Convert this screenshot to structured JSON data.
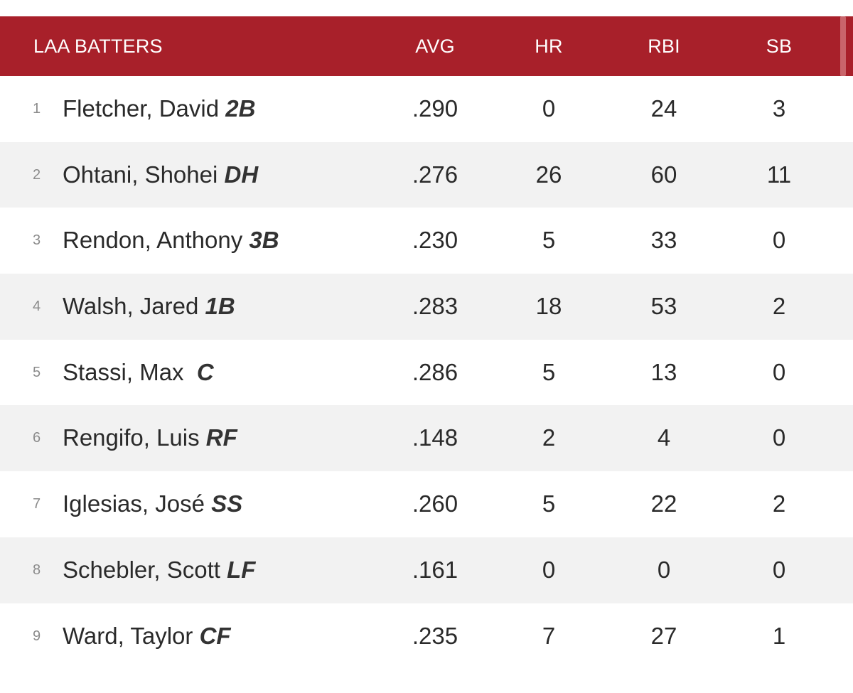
{
  "header": {
    "title": "LAA BATTERS",
    "columns": [
      "AVG",
      "HR",
      "RBI",
      "SB"
    ]
  },
  "rows": [
    {
      "num": "1",
      "name": "Fletcher, David",
      "pos": "2B",
      "avg": ".290",
      "hr": "0",
      "rbi": "24",
      "sb": "3"
    },
    {
      "num": "2",
      "name": "Ohtani, Shohei",
      "pos": "DH",
      "avg": ".276",
      "hr": "26",
      "rbi": "60",
      "sb": "11"
    },
    {
      "num": "3",
      "name": "Rendon, Anthony",
      "pos": "3B",
      "avg": ".230",
      "hr": "5",
      "rbi": "33",
      "sb": "0"
    },
    {
      "num": "4",
      "name": "Walsh, Jared",
      "pos": "1B",
      "avg": ".283",
      "hr": "18",
      "rbi": "53",
      "sb": "2"
    },
    {
      "num": "5",
      "name": "Stassi, Max",
      "pos": "C",
      "avg": ".286",
      "hr": "5",
      "rbi": "13",
      "sb": "0"
    },
    {
      "num": "6",
      "name": "Rengifo, Luis",
      "pos": "RF",
      "avg": ".148",
      "hr": "2",
      "rbi": "4",
      "sb": "0"
    },
    {
      "num": "7",
      "name": "Iglesias, José",
      "pos": "SS",
      "avg": ".260",
      "hr": "5",
      "rbi": "22",
      "sb": "2"
    },
    {
      "num": "8",
      "name": "Schebler, Scott",
      "pos": "LF",
      "avg": ".161",
      "hr": "0",
      "rbi": "0",
      "sb": "0"
    },
    {
      "num": "9",
      "name": "Ward, Taylor",
      "pos": "CF",
      "avg": ".235",
      "hr": "7",
      "rbi": "27",
      "sb": "1"
    }
  ],
  "colors": {
    "header_bg": "#a8202a",
    "header_text": "#ffffff",
    "row_alt_bg": "#f2f2f2"
  }
}
